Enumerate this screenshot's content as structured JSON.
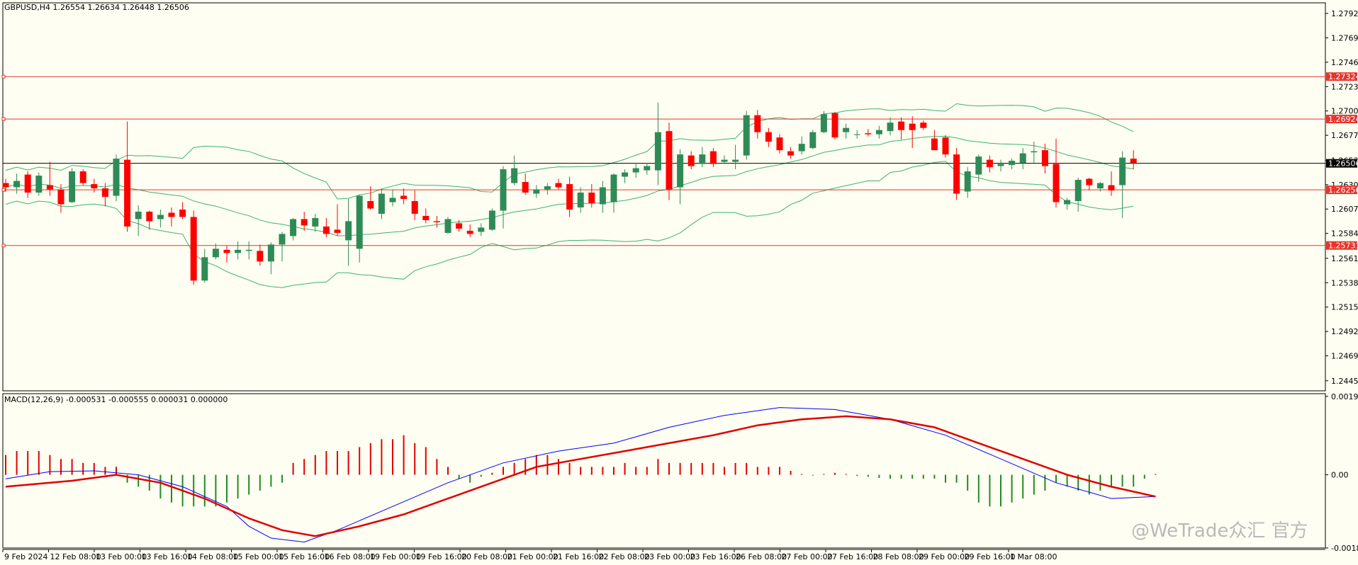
{
  "chart_data": {
    "type": "candlestick",
    "title": "GBPUSD,H4 1.26554 1.26634 1.26448 1.26506",
    "colors": {
      "background": "#fefef2",
      "up": "#2e8b57",
      "down": "#ff0000",
      "bands": "#3cb371",
      "level_line": "#e8342c",
      "macd_line": "#0000ff",
      "signal_line": "#e00000",
      "hist_pos": "#e00000",
      "hist_neg": "#228b22"
    },
    "price_axis": {
      "ylim": [
        1.2436,
        1.2802
      ],
      "ticks": [
        "1.27920",
        "1.27690",
        "1.27460",
        "1.27230",
        "1.27000",
        "1.26770",
        "1.26535",
        "1.26305",
        "1.26075",
        "1.25845",
        "1.25610",
        "1.25380",
        "1.25150",
        "1.24920",
        "1.24690",
        "1.24455"
      ]
    },
    "level_lines": [
      {
        "price": 1.27324,
        "label": "1.27324"
      },
      {
        "price": 1.26924,
        "label": "1.26924"
      },
      {
        "price": 1.26256,
        "label": "1.26256"
      },
      {
        "price": 1.25731,
        "label": "1.25731"
      }
    ],
    "current_price": {
      "price": 1.26506,
      "label": "1.26506"
    },
    "x_labels": [
      "9 Feb 2024",
      "12 Feb 08:00",
      "13 Feb 00:00",
      "13 Feb 16:00",
      "14 Feb 08:00",
      "15 Feb 00:00",
      "15 Feb 16:00",
      "16 Feb 08:00",
      "19 Feb 00:00",
      "19 Feb 16:00",
      "20 Feb 08:00",
      "21 Feb 00:00",
      "21 Feb 16:00",
      "22 Feb 08:00",
      "23 Feb 00:00",
      "23 Feb 16:00",
      "26 Feb 08:00",
      "27 Feb 00:00",
      "27 Feb 16:00",
      "28 Feb 08:00",
      "29 Feb 00:00",
      "29 Feb 16:00",
      "1 Mar 08:00"
    ],
    "candles": [
      {
        "o": 1.2632,
        "h": 1.2636,
        "l": 1.2624,
        "c": 1.2628
      },
      {
        "o": 1.2628,
        "h": 1.2641,
        "l": 1.2622,
        "c": 1.2634
      },
      {
        "o": 1.264,
        "h": 1.2643,
        "l": 1.2618,
        "c": 1.2623
      },
      {
        "o": 1.2623,
        "h": 1.2642,
        "l": 1.262,
        "c": 1.2639
      },
      {
        "o": 1.263,
        "h": 1.2652,
        "l": 1.262,
        "c": 1.2626
      },
      {
        "o": 1.2626,
        "h": 1.2631,
        "l": 1.2604,
        "c": 1.2612
      },
      {
        "o": 1.2614,
        "h": 1.2646,
        "l": 1.2613,
        "c": 1.2643
      },
      {
        "o": 1.2643,
        "h": 1.2645,
        "l": 1.263,
        "c": 1.2632
      },
      {
        "o": 1.2631,
        "h": 1.2636,
        "l": 1.2623,
        "c": 1.2627
      },
      {
        "o": 1.2627,
        "h": 1.2632,
        "l": 1.261,
        "c": 1.2619
      },
      {
        "o": 1.262,
        "h": 1.2659,
        "l": 1.2615,
        "c": 1.2655
      },
      {
        "o": 1.2654,
        "h": 1.269,
        "l": 1.2586,
        "c": 1.2591
      },
      {
        "o": 1.2598,
        "h": 1.2611,
        "l": 1.2582,
        "c": 1.2605
      },
      {
        "o": 1.2605,
        "h": 1.2606,
        "l": 1.2588,
        "c": 1.2596
      },
      {
        "o": 1.2598,
        "h": 1.2607,
        "l": 1.259,
        "c": 1.2602
      },
      {
        "o": 1.2604,
        "h": 1.2609,
        "l": 1.2591,
        "c": 1.26
      },
      {
        "o": 1.2607,
        "h": 1.2614,
        "l": 1.2598,
        "c": 1.26
      },
      {
        "o": 1.26,
        "h": 1.2606,
        "l": 1.2536,
        "c": 1.254
      },
      {
        "o": 1.254,
        "h": 1.257,
        "l": 1.2538,
        "c": 1.2562
      },
      {
        "o": 1.2562,
        "h": 1.2575,
        "l": 1.256,
        "c": 1.257
      },
      {
        "o": 1.2569,
        "h": 1.2573,
        "l": 1.2557,
        "c": 1.2566
      },
      {
        "o": 1.2566,
        "h": 1.2577,
        "l": 1.256,
        "c": 1.2569
      },
      {
        "o": 1.2568,
        "h": 1.2577,
        "l": 1.256,
        "c": 1.2569
      },
      {
        "o": 1.2568,
        "h": 1.2574,
        "l": 1.2554,
        "c": 1.2558
      },
      {
        "o": 1.2558,
        "h": 1.2576,
        "l": 1.2546,
        "c": 1.2574
      },
      {
        "o": 1.2574,
        "h": 1.2586,
        "l": 1.2558,
        "c": 1.2584
      },
      {
        "o": 1.2582,
        "h": 1.2599,
        "l": 1.2578,
        "c": 1.2598
      },
      {
        "o": 1.2598,
        "h": 1.2605,
        "l": 1.2587,
        "c": 1.2592
      },
      {
        "o": 1.2591,
        "h": 1.2603,
        "l": 1.2586,
        "c": 1.2599
      },
      {
        "o": 1.2591,
        "h": 1.2599,
        "l": 1.2581,
        "c": 1.2584
      },
      {
        "o": 1.2588,
        "h": 1.2612,
        "l": 1.2582,
        "c": 1.2585
      },
      {
        "o": 1.2578,
        "h": 1.2617,
        "l": 1.2554,
        "c": 1.2596
      },
      {
        "o": 1.257,
        "h": 1.2621,
        "l": 1.2557,
        "c": 1.262
      },
      {
        "o": 1.2615,
        "h": 1.2629,
        "l": 1.2607,
        "c": 1.2608
      },
      {
        "o": 1.2603,
        "h": 1.2627,
        "l": 1.2598,
        "c": 1.2622
      },
      {
        "o": 1.2614,
        "h": 1.2626,
        "l": 1.261,
        "c": 1.2618
      },
      {
        "o": 1.262,
        "h": 1.2627,
        "l": 1.2612,
        "c": 1.2617
      },
      {
        "o": 1.2615,
        "h": 1.2625,
        "l": 1.2597,
        "c": 1.2603
      },
      {
        "o": 1.2601,
        "h": 1.2608,
        "l": 1.2594,
        "c": 1.2597
      },
      {
        "o": 1.2596,
        "h": 1.2601,
        "l": 1.259,
        "c": 1.2595
      },
      {
        "o": 1.2585,
        "h": 1.26,
        "l": 1.2584,
        "c": 1.2598
      },
      {
        "o": 1.2594,
        "h": 1.2597,
        "l": 1.2586,
        "c": 1.2589
      },
      {
        "o": 1.2587,
        "h": 1.2593,
        "l": 1.2581,
        "c": 1.2584
      },
      {
        "o": 1.2586,
        "h": 1.2594,
        "l": 1.2582,
        "c": 1.259
      },
      {
        "o": 1.2588,
        "h": 1.2608,
        "l": 1.2587,
        "c": 1.2606
      },
      {
        "o": 1.2606,
        "h": 1.2648,
        "l": 1.2589,
        "c": 1.2645
      },
      {
        "o": 1.2632,
        "h": 1.2658,
        "l": 1.263,
        "c": 1.2646
      },
      {
        "o": 1.2633,
        "h": 1.2641,
        "l": 1.2621,
        "c": 1.2623
      },
      {
        "o": 1.2622,
        "h": 1.263,
        "l": 1.2618,
        "c": 1.2626
      },
      {
        "o": 1.2626,
        "h": 1.2632,
        "l": 1.2621,
        "c": 1.2629
      },
      {
        "o": 1.2632,
        "h": 1.2636,
        "l": 1.2626,
        "c": 1.2628
      },
      {
        "o": 1.2631,
        "h": 1.2638,
        "l": 1.26,
        "c": 1.2607
      },
      {
        "o": 1.2609,
        "h": 1.2628,
        "l": 1.2604,
        "c": 1.2623
      },
      {
        "o": 1.2623,
        "h": 1.2631,
        "l": 1.2609,
        "c": 1.2613
      },
      {
        "o": 1.2612,
        "h": 1.2634,
        "l": 1.2604,
        "c": 1.2628
      },
      {
        "o": 1.2614,
        "h": 1.2641,
        "l": 1.2604,
        "c": 1.264
      },
      {
        "o": 1.2638,
        "h": 1.2645,
        "l": 1.2632,
        "c": 1.2642
      },
      {
        "o": 1.2642,
        "h": 1.265,
        "l": 1.2637,
        "c": 1.2646
      },
      {
        "o": 1.2644,
        "h": 1.2651,
        "l": 1.264,
        "c": 1.2648
      },
      {
        "o": 1.2644,
        "h": 1.2708,
        "l": 1.263,
        "c": 1.268
      },
      {
        "o": 1.2681,
        "h": 1.2689,
        "l": 1.2616,
        "c": 1.2626
      },
      {
        "o": 1.2628,
        "h": 1.2664,
        "l": 1.2612,
        "c": 1.2659
      },
      {
        "o": 1.2658,
        "h": 1.2662,
        "l": 1.2645,
        "c": 1.2648
      },
      {
        "o": 1.265,
        "h": 1.2666,
        "l": 1.2647,
        "c": 1.2659
      },
      {
        "o": 1.2662,
        "h": 1.2665,
        "l": 1.2647,
        "c": 1.265
      },
      {
        "o": 1.2652,
        "h": 1.2658,
        "l": 1.265,
        "c": 1.2654
      },
      {
        "o": 1.2652,
        "h": 1.2668,
        "l": 1.2645,
        "c": 1.2654
      },
      {
        "o": 1.2658,
        "h": 1.27,
        "l": 1.2654,
        "c": 1.2696
      },
      {
        "o": 1.2696,
        "h": 1.2701,
        "l": 1.2674,
        "c": 1.268
      },
      {
        "o": 1.268,
        "h": 1.2684,
        "l": 1.2666,
        "c": 1.2671
      },
      {
        "o": 1.2675,
        "h": 1.2678,
        "l": 1.266,
        "c": 1.2663
      },
      {
        "o": 1.2662,
        "h": 1.2666,
        "l": 1.2655,
        "c": 1.2658
      },
      {
        "o": 1.2662,
        "h": 1.2676,
        "l": 1.2659,
        "c": 1.2669
      },
      {
        "o": 1.2665,
        "h": 1.2682,
        "l": 1.2664,
        "c": 1.268
      },
      {
        "o": 1.268,
        "h": 1.27,
        "l": 1.2679,
        "c": 1.2697
      },
      {
        "o": 1.2698,
        "h": 1.2699,
        "l": 1.2673,
        "c": 1.2675
      },
      {
        "o": 1.268,
        "h": 1.2688,
        "l": 1.2674,
        "c": 1.2684
      },
      {
        "o": 1.2678,
        "h": 1.2682,
        "l": 1.2674,
        "c": 1.2678
      },
      {
        "o": 1.2679,
        "h": 1.2683,
        "l": 1.2676,
        "c": 1.2678
      },
      {
        "o": 1.2678,
        "h": 1.2686,
        "l": 1.2674,
        "c": 1.2682
      },
      {
        "o": 1.2681,
        "h": 1.2694,
        "l": 1.2677,
        "c": 1.2689
      },
      {
        "o": 1.269,
        "h": 1.2694,
        "l": 1.2673,
        "c": 1.2682
      },
      {
        "o": 1.2688,
        "h": 1.2695,
        "l": 1.2665,
        "c": 1.2682
      },
      {
        "o": 1.2689,
        "h": 1.2691,
        "l": 1.2682,
        "c": 1.2684
      },
      {
        "o": 1.2674,
        "h": 1.2682,
        "l": 1.2663,
        "c": 1.2663
      },
      {
        "o": 1.2675,
        "h": 1.2677,
        "l": 1.2656,
        "c": 1.2659
      },
      {
        "o": 1.2659,
        "h": 1.2665,
        "l": 1.2616,
        "c": 1.2622
      },
      {
        "o": 1.2624,
        "h": 1.2647,
        "l": 1.2618,
        "c": 1.2643
      },
      {
        "o": 1.264,
        "h": 1.2659,
        "l": 1.2633,
        "c": 1.2657
      },
      {
        "o": 1.2654,
        "h": 1.2658,
        "l": 1.2642,
        "c": 1.2647
      },
      {
        "o": 1.2648,
        "h": 1.2654,
        "l": 1.2643,
        "c": 1.265
      },
      {
        "o": 1.2649,
        "h": 1.2655,
        "l": 1.2645,
        "c": 1.2653
      },
      {
        "o": 1.2651,
        "h": 1.2665,
        "l": 1.2645,
        "c": 1.266
      },
      {
        "o": 1.2661,
        "h": 1.2671,
        "l": 1.2651,
        "c": 1.2662
      },
      {
        "o": 1.2663,
        "h": 1.2669,
        "l": 1.2641,
        "c": 1.2648
      },
      {
        "o": 1.265,
        "h": 1.2674,
        "l": 1.2609,
        "c": 1.2614
      },
      {
        "o": 1.2612,
        "h": 1.2618,
        "l": 1.2607,
        "c": 1.2616
      },
      {
        "o": 1.2615,
        "h": 1.2637,
        "l": 1.2605,
        "c": 1.2635
      },
      {
        "o": 1.2636,
        "h": 1.2637,
        "l": 1.2625,
        "c": 1.263
      },
      {
        "o": 1.2627,
        "h": 1.2633,
        "l": 1.2624,
        "c": 1.2632
      },
      {
        "o": 1.263,
        "h": 1.2643,
        "l": 1.262,
        "c": 1.2625
      },
      {
        "o": 1.263,
        "h": 1.2662,
        "l": 1.2599,
        "c": 1.2656
      },
      {
        "o": 1.2655,
        "h": 1.2663,
        "l": 1.2645,
        "c": 1.2651
      }
    ],
    "macd": {
      "label": "MACD(12,26,9) -0.000531 -0.000555 0.000031 0.000000",
      "ylim": [
        -0.00185,
        0.00205
      ],
      "ticks": [
        "0.001982",
        "0.00",
        "-0.001849"
      ],
      "histogram_ticks": [
        {
          "label": "0.001982",
          "value": 0.001982
        },
        {
          "label": "0.00",
          "value": 0.0
        },
        {
          "label": "-0.001849",
          "value": -0.001849
        }
      ],
      "macd_line": [
        [
          0,
          -0.0001
        ],
        [
          4,
          8e-05
        ],
        [
          8,
          0.0001
        ],
        [
          12,
          0.0
        ],
        [
          16,
          -0.0003
        ],
        [
          20,
          -0.0008
        ],
        [
          22,
          -0.0013
        ],
        [
          24,
          -0.0016
        ],
        [
          27,
          -0.0017
        ],
        [
          30,
          -0.0014
        ],
        [
          35,
          -0.0008
        ],
        [
          40,
          -0.0002
        ],
        [
          45,
          0.0003
        ],
        [
          50,
          0.0006
        ],
        [
          55,
          0.0008
        ],
        [
          60,
          0.0012
        ],
        [
          65,
          0.0015
        ],
        [
          70,
          0.0017
        ],
        [
          75,
          0.00165
        ],
        [
          80,
          0.0014
        ],
        [
          85,
          0.001
        ],
        [
          90,
          0.0004
        ],
        [
          95,
          -0.0002
        ],
        [
          100,
          -0.0006
        ],
        [
          104,
          -0.00055
        ]
      ],
      "signal_line": [
        [
          0,
          -0.0003
        ],
        [
          6,
          -0.00015
        ],
        [
          10,
          0.0
        ],
        [
          14,
          -0.0002
        ],
        [
          18,
          -0.0006
        ],
        [
          22,
          -0.0011
        ],
        [
          25,
          -0.0014
        ],
        [
          28,
          -0.00155
        ],
        [
          32,
          -0.0013
        ],
        [
          36,
          -0.001
        ],
        [
          40,
          -0.0006
        ],
        [
          44,
          -0.0002
        ],
        [
          48,
          0.0002
        ],
        [
          52,
          0.0004
        ],
        [
          56,
          0.0006
        ],
        [
          60,
          0.0008
        ],
        [
          64,
          0.001
        ],
        [
          68,
          0.00125
        ],
        [
          72,
          0.0014
        ],
        [
          76,
          0.00148
        ],
        [
          80,
          0.0014
        ],
        [
          84,
          0.0012
        ],
        [
          88,
          0.0008
        ],
        [
          92,
          0.0004
        ],
        [
          96,
          0.0
        ],
        [
          100,
          -0.0003
        ],
        [
          104,
          -0.00055
        ]
      ],
      "histogram": [
        0.0005,
        0.0006,
        0.0006,
        0.0006,
        0.0005,
        0.0004,
        0.0004,
        0.0003,
        0.0003,
        0.0002,
        0.0002,
        -0.0002,
        -0.0003,
        -0.0004,
        -0.0006,
        -0.0007,
        -0.0008,
        -0.0008,
        -0.0008,
        -0.0008,
        -0.0007,
        -0.0006,
        -0.0005,
        -0.0004,
        -0.0003,
        -0.0002,
        0.0003,
        0.0004,
        0.0005,
        0.0006,
        0.0006,
        0.0006,
        0.0007,
        0.0008,
        0.0009,
        0.0009,
        0.001,
        0.0008,
        0.0007,
        0.0004,
        0.0002,
        -0.0001,
        -0.0002,
        -5e-05,
        5e-05,
        0.0002,
        0.0003,
        0.0004,
        0.0005,
        0.0005,
        0.0004,
        0.0003,
        0.0002,
        0.0002,
        0.0002,
        0.0002,
        0.0003,
        0.0002,
        0.0002,
        0.0004,
        0.0003,
        0.0003,
        0.0003,
        0.0003,
        0.0003,
        0.0002,
        0.0003,
        0.0003,
        0.0002,
        0.0002,
        0.0002,
        0.0001,
        2e-05,
        -2e-05,
        2e-05,
        5e-05,
        2e-05,
        -3e-05,
        -5e-05,
        -8e-05,
        -0.0001,
        -0.0001,
        -0.0001,
        -0.0001,
        -0.0001,
        -0.0002,
        -0.0002,
        -0.0004,
        -0.0007,
        -0.0008,
        -0.0008,
        -0.0007,
        -0.0006,
        -0.0005,
        -0.0004,
        -0.0002,
        -0.0003,
        -0.0004,
        -0.0005,
        -0.0004,
        -0.0003,
        -0.0003,
        -0.0003,
        -0.0001,
        2e-05
      ]
    }
  },
  "watermark": "@WeTrade众汇 官方"
}
